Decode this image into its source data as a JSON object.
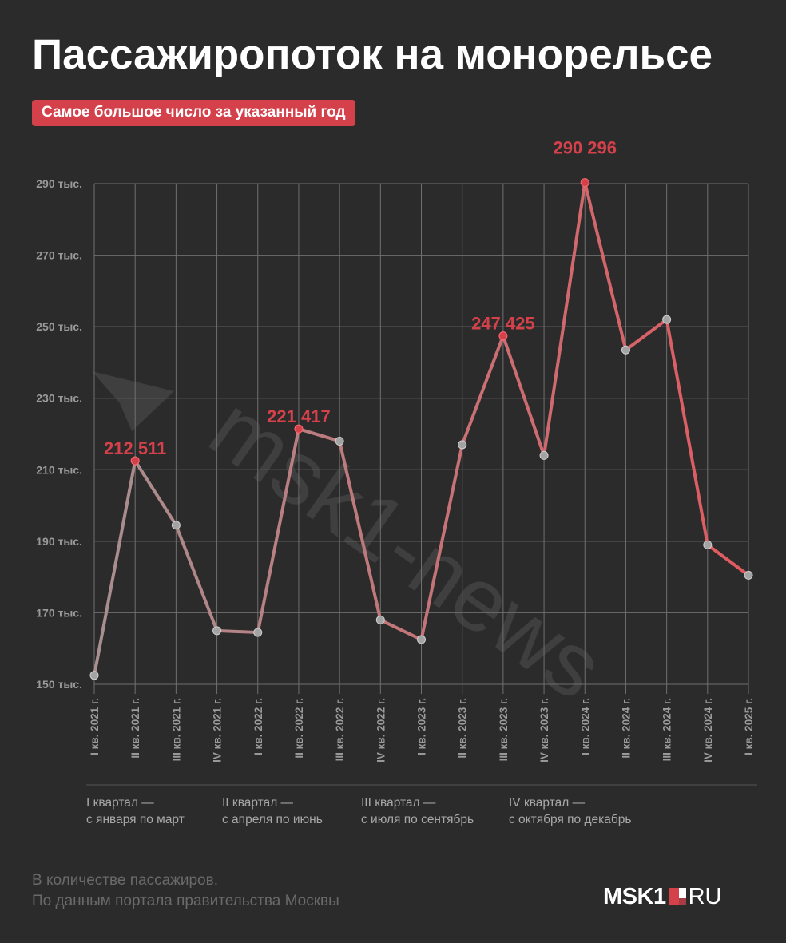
{
  "header": {
    "title": "Пассажиропоток на монорельсе",
    "badge": "Самое большое число за указанный год"
  },
  "colors": {
    "background": "#2b2b2c",
    "accent": "#d4414a",
    "line_start": "#a88f90",
    "line_end": "#e05a60",
    "point_gray": "#a3a3a3",
    "grid": "#6f6f6f"
  },
  "chart_data": {
    "type": "line",
    "title": "Пассажиропоток на монорельсе",
    "xlabel": "",
    "ylabel": "",
    "ylim": [
      150000,
      290000
    ],
    "grid": true,
    "yticks": [
      {
        "value": 150000,
        "label": "150 тыс."
      },
      {
        "value": 170000,
        "label": "170 тыс."
      },
      {
        "value": 190000,
        "label": "190 тыс."
      },
      {
        "value": 210000,
        "label": "210 тыс."
      },
      {
        "value": 230000,
        "label": "230 тыс."
      },
      {
        "value": 250000,
        "label": "250 тыс."
      },
      {
        "value": 270000,
        "label": "270 тыс."
      },
      {
        "value": 290000,
        "label": "290 тыс."
      }
    ],
    "categories": [
      "I кв. 2021 г.",
      "II кв. 2021 г.",
      "III кв. 2021 г.",
      "IV кв. 2021 г.",
      "I кв. 2022 г.",
      "II кв. 2022 г.",
      "III кв. 2022 г.",
      "IV кв. 2022 г.",
      "I кв. 2023 г.",
      "II кв. 2023 г.",
      "III кв. 2023 г.",
      "IV кв. 2023 г.",
      "I кв. 2024 г.",
      "II кв. 2024 г.",
      "III кв. 2024 г.",
      "IV кв. 2024 г.",
      "I кв. 2025 г."
    ],
    "series": [
      {
        "values": [
          152500,
          212511,
          194500,
          165000,
          164500,
          221417,
          218000,
          168000,
          162500,
          217000,
          247425,
          214000,
          290296,
          243500,
          252000,
          189000,
          180500
        ]
      }
    ],
    "highlights": [
      {
        "index": 1,
        "label": "212 511"
      },
      {
        "index": 5,
        "label": "221 417"
      },
      {
        "index": 10,
        "label": "247 425"
      },
      {
        "index": 12,
        "label": "290 296"
      }
    ]
  },
  "legend": [
    {
      "line1": "I квартал —",
      "line2": "с января по март"
    },
    {
      "line1": "II квартал —",
      "line2": "с апреля по июнь"
    },
    {
      "line1": "III квартал —",
      "line2": "с июля по сентябрь"
    },
    {
      "line1": "IV квартал —",
      "line2": "с октября по декабрь"
    }
  ],
  "footer": {
    "line1": "В количестве пассажиров.",
    "line2": "По данным портала правительства Москвы"
  },
  "logo": {
    "text1": "MSK1",
    "text2": "RU"
  },
  "watermark": "msk1-news"
}
